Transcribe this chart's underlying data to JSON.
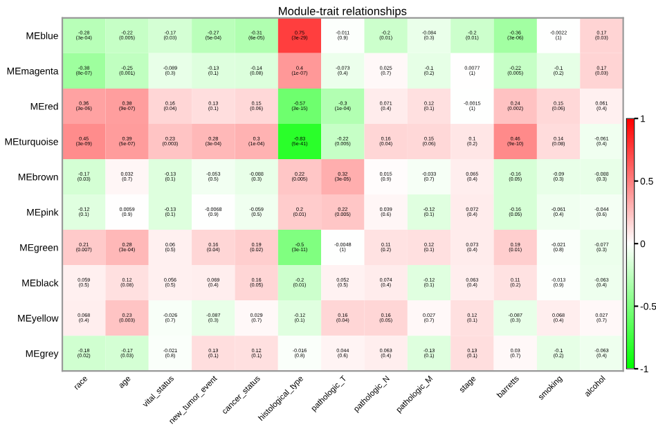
{
  "chart_data": {
    "type": "heatmap",
    "title": "Module-trait relationships",
    "categories": [
      "race",
      "age",
      "vital_status",
      "new_tumor_event",
      "cancer_status",
      "histological_type",
      "pathologic_T",
      "pathologic_N",
      "pathologic_M",
      "stage",
      "barretts",
      "smoking",
      "alcohol"
    ],
    "y_categories": [
      "MEblue",
      "MEmagenta",
      "MEred",
      "MEturquoise",
      "MEbrown",
      "MEpink",
      "MEgreen",
      "MEblack",
      "MEyellow",
      "MEgrey"
    ],
    "cells": [
      [
        -0.28,
        -0.22,
        -0.17,
        -0.27,
        -0.31,
        0.75,
        -0.011,
        -0.2,
        -0.084,
        -0.2,
        -0.36,
        -0.0022,
        0.17
      ],
      [
        -0.38,
        -0.25,
        -0.089,
        -0.13,
        -0.14,
        0.4,
        -0.073,
        0.025,
        -0.1,
        0.0077,
        -0.22,
        -0.1,
        0.17
      ],
      [
        0.36,
        0.38,
        0.16,
        0.13,
        0.15,
        -0.57,
        -0.3,
        0.071,
        0.12,
        -0.0015,
        0.24,
        0.15,
        0.061
      ],
      [
        0.45,
        0.39,
        0.23,
        0.28,
        0.3,
        -0.83,
        -0.22,
        0.16,
        0.15,
        0.1,
        0.46,
        0.14,
        -0.061
      ],
      [
        -0.17,
        0.032,
        -0.13,
        -0.053,
        -0.088,
        0.22,
        0.32,
        0.015,
        -0.033,
        0.065,
        -0.16,
        -0.09,
        -0.088
      ],
      [
        -0.12,
        0.0059,
        -0.13,
        -0.0068,
        -0.059,
        0.2,
        0.22,
        0.039,
        -0.12,
        0.072,
        -0.16,
        -0.061,
        -0.044
      ],
      [
        0.21,
        0.28,
        0.06,
        0.16,
        0.19,
        -0.5,
        -0.0048,
        0.11,
        0.12,
        0.073,
        0.19,
        -0.021,
        -0.077
      ],
      [
        0.059,
        0.12,
        0.056,
        0.069,
        0.16,
        -0.2,
        0.052,
        0.074,
        -0.12,
        0.063,
        0.11,
        -0.013,
        -0.063
      ],
      [
        0.068,
        0.23,
        -0.026,
        -0.087,
        0.029,
        -0.12,
        0.16,
        0.16,
        0.027,
        0.12,
        -0.087,
        0.068,
        0.027
      ],
      [
        -0.18,
        -0.17,
        -0.021,
        0.13,
        0.12,
        -0.016,
        0.044,
        0.063,
        -0.13,
        0.13,
        0.03,
        -0.1,
        -0.063
      ]
    ],
    "cell_labels": [
      [
        "-0.28\n(3e-04)",
        "-0.22\n(0.005)",
        "-0.17\n(0.03)",
        "-0.27\n(5e-04)",
        "-0.31\n(6e-05)",
        "0.75\n(3e-29)",
        "-0.011\n(0.9)",
        "-0.2\n(0.01)",
        "-0.084\n(0.3)",
        "-0.2\n(0.01)",
        "-0.36\n(3e-06)",
        "-0.0022\n(1)",
        "0.17\n(0.03)"
      ],
      [
        "-0.38\n(8e-07)",
        "-0.25\n(0.001)",
        "-0.089\n(0.3)",
        "-0.13\n(0.1)",
        "-0.14\n(0.08)",
        "0.4\n(1e-07)",
        "-0.073\n(0.4)",
        "0.025\n(0.7)",
        "-0.1\n(0.2)",
        "0.0077\n(1)",
        "-0.22\n(0.005)",
        "-0.1\n(0.2)",
        "0.17\n(0.03)"
      ],
      [
        "0.36\n(3e-06)",
        "0.38\n(9e-07)",
        "0.16\n(0.04)",
        "0.13\n(0.1)",
        "0.15\n(0.06)",
        "-0.57\n(3e-15)",
        "-0.3\n(1e-04)",
        "0.071\n(0.4)",
        "0.12\n(0.1)",
        "-0.0015\n(1)",
        "0.24\n(0.002)",
        "0.15\n(0.06)",
        "0.061\n(0.4)"
      ],
      [
        "0.45\n(3e-09)",
        "0.39\n(5e-07)",
        "0.23\n(0.003)",
        "0.28\n(3e-04)",
        "0.3\n(1e-04)",
        "-0.83\n(5e-41)",
        "-0.22\n(0.005)",
        "0.16\n(0.04)",
        "0.15\n(0.06)",
        "0.1\n(0.2)",
        "0.46\n(9e-10)",
        "0.14\n(0.08)",
        "-0.061\n(0.4)"
      ],
      [
        "-0.17\n(0.03)",
        "0.032\n(0.7)",
        "-0.13\n(0.1)",
        "-0.053\n(0.5)",
        "-0.088\n(0.3)",
        "0.22\n(0.005)",
        "0.32\n(3e-05)",
        "0.015\n(0.9)",
        "-0.033\n(0.7)",
        "0.065\n(0.4)",
        "-0.16\n(0.05)",
        "-0.09\n(0.3)",
        "-0.088\n(0.3)"
      ],
      [
        "-0.12\n(0.1)",
        "0.0059\n(0.9)",
        "-0.13\n(0.1)",
        "-0.0068\n(0.9)",
        "-0.059\n(0.5)",
        "0.2\n(0.01)",
        "0.22\n(0.005)",
        "0.039\n(0.6)",
        "-0.12\n(0.1)",
        "0.072\n(0.4)",
        "-0.16\n(0.05)",
        "-0.061\n(0.4)",
        "-0.044\n(0.6)"
      ],
      [
        "0.21\n(0.007)",
        "0.28\n(3e-04)",
        "0.06\n(0.5)",
        "0.16\n(0.04)",
        "0.19\n(0.02)",
        "-0.5\n(3e-11)",
        "-0.0048\n(1)",
        "0.11\n(0.2)",
        "0.12\n(0.1)",
        "0.073\n(0.4)",
        "0.19\n(0.01)",
        "-0.021\n(0.8)",
        "-0.077\n(0.3)"
      ],
      [
        "0.059\n(0.5)",
        "0.12\n(0.08)",
        "0.056\n(0.5)",
        "0.069\n(0.4)",
        "0.16\n(0.05)",
        "-0.2\n(0.01)",
        "0.052\n(0.5)",
        "0.074\n(0.4)",
        "-0.12\n(0.1)",
        "0.063\n(0.4)",
        "0.11\n(0.2)",
        "-0.013\n(0.9)",
        "-0.063\n(0.4)"
      ],
      [
        "0.068\n(0.4)",
        "0.23\n(0.003)",
        "-0.026\n(0.7)",
        "-0.087\n(0.3)",
        "0.029\n(0.7)",
        "-0.12\n(0.1)",
        "0.16\n(0.04)",
        "0.16\n(0.05)",
        "0.027\n(0.7)",
        "0.12\n(0.1)",
        "-0.087\n(0.3)",
        "0.068\n(0.4)",
        "0.027\n(0.7)"
      ],
      [
        "-0.18\n(0.02)",
        "-0.17\n(0.03)",
        "-0.021\n(0.8)",
        "0.13\n(0.1)",
        "0.12\n(0.1)",
        "-0.016\n(0.8)",
        "0.044\n(0.6)",
        "0.063\n(0.4)",
        "-0.13\n(0.1)",
        "0.13\n(0.1)",
        "0.03\n(0.7)",
        "-0.1\n(0.2)",
        "-0.063\n(0.4)"
      ]
    ],
    "clim": [
      -1,
      1
    ],
    "cticks": [
      -1,
      -0.5,
      0,
      0.5,
      1
    ]
  }
}
